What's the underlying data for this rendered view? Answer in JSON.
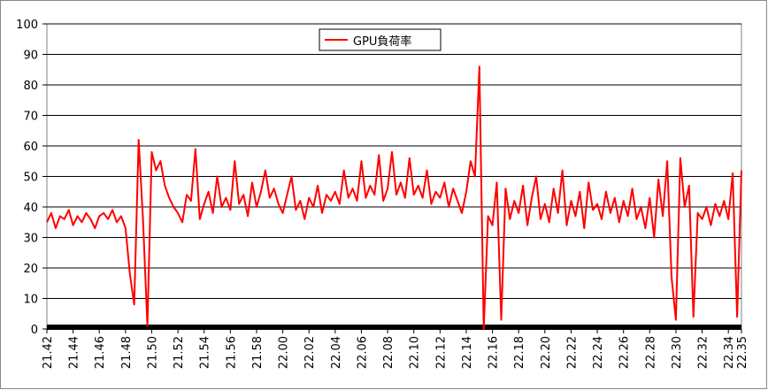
{
  "chart_data": {
    "type": "line",
    "categories": [
      "21.42",
      null,
      null,
      null,
      null,
      null,
      "21.44",
      null,
      null,
      null,
      null,
      null,
      "21.46",
      null,
      null,
      null,
      null,
      null,
      "21.48",
      null,
      null,
      null,
      null,
      null,
      "21.50",
      null,
      null,
      null,
      null,
      null,
      "21.52",
      null,
      null,
      null,
      null,
      null,
      "21.54",
      null,
      null,
      null,
      null,
      null,
      "21.56",
      null,
      null,
      null,
      null,
      null,
      "21.58",
      null,
      null,
      null,
      null,
      null,
      "22.00",
      null,
      null,
      null,
      null,
      null,
      "22.02",
      null,
      null,
      null,
      null,
      null,
      "22.04",
      null,
      null,
      null,
      null,
      null,
      "22.06",
      null,
      null,
      null,
      null,
      null,
      "22.08",
      null,
      null,
      null,
      null,
      null,
      "22.10",
      null,
      null,
      null,
      null,
      null,
      "22.12",
      null,
      null,
      null,
      null,
      null,
      "22.14",
      null,
      null,
      null,
      null,
      null,
      "22.16",
      null,
      null,
      null,
      null,
      null,
      "22.18",
      null,
      null,
      null,
      null,
      null,
      "22.20",
      null,
      null,
      null,
      null,
      null,
      "22.22",
      null,
      null,
      null,
      null,
      null,
      "22.24",
      null,
      null,
      null,
      null,
      null,
      "22.26",
      null,
      null,
      null,
      null,
      null,
      "22.28",
      null,
      null,
      null,
      null,
      null,
      "22.30",
      null,
      null,
      null,
      null,
      null,
      "22.32",
      null,
      null,
      null,
      null,
      null,
      "22.34",
      null,
      null,
      "22.35"
    ],
    "series": [
      {
        "name": "GPU負荷率",
        "color": "#ff0000",
        "values": [
          35,
          38,
          33,
          37,
          36,
          39,
          34,
          37,
          35,
          38,
          36,
          33,
          37,
          38,
          36,
          39,
          35,
          37,
          33,
          18,
          8,
          62,
          36,
          1,
          58,
          52,
          55,
          47,
          43,
          40,
          38,
          35,
          44,
          42,
          59,
          36,
          41,
          45,
          38,
          50,
          40,
          43,
          39,
          55,
          41,
          44,
          37,
          48,
          40,
          45,
          52,
          43,
          46,
          41,
          38,
          44,
          50,
          39,
          42,
          36,
          43,
          40,
          47,
          38,
          44,
          42,
          45,
          41,
          52,
          43,
          46,
          42,
          55,
          43,
          47,
          44,
          57,
          42,
          46,
          58,
          44,
          48,
          43,
          56,
          44,
          47,
          43,
          52,
          41,
          45,
          43,
          48,
          40,
          46,
          42,
          38,
          45,
          55,
          50,
          86,
          0,
          37,
          34,
          48,
          3,
          46,
          36,
          42,
          38,
          47,
          34,
          43,
          50,
          36,
          41,
          35,
          46,
          38,
          52,
          34,
          42,
          37,
          45,
          33,
          48,
          39,
          41,
          36,
          45,
          38,
          43,
          35,
          42,
          37,
          46,
          36,
          40,
          33,
          43,
          30,
          49,
          37,
          55,
          17,
          3,
          56,
          40,
          47,
          4,
          38,
          36,
          40,
          34,
          41,
          37,
          42,
          36,
          51,
          4,
          52
        ]
      }
    ],
    "ylim": [
      0,
      100
    ],
    "yticks": [
      0,
      10,
      20,
      30,
      40,
      50,
      60,
      70,
      80,
      90,
      100
    ],
    "grid": true
  }
}
